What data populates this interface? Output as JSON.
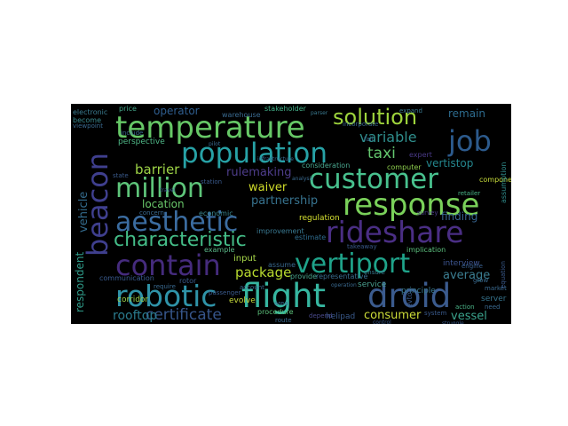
{
  "word_cloud": {
    "background": "#000000",
    "words": [
      {
        "text": "robotic",
        "color": "#2f93a8"
      },
      {
        "text": "flight",
        "color": "#36b6a0"
      },
      {
        "text": "droid",
        "color": "#3b5b8e"
      },
      {
        "text": "temperature",
        "color": "#66c866"
      },
      {
        "text": "population",
        "color": "#27a2a6"
      },
      {
        "text": "customer",
        "color": "#48c18e"
      },
      {
        "text": "response",
        "color": "#7ad15a"
      },
      {
        "text": "million",
        "color": "#5ec57a"
      },
      {
        "text": "aesthetic",
        "color": "#3b6ca0"
      },
      {
        "text": "beacon",
        "color": "#3f3f8e"
      },
      {
        "text": "rideshare",
        "color": "#4a2e84"
      },
      {
        "text": "contain",
        "color": "#452b7d"
      },
      {
        "text": "vertiport",
        "color": "#1fa38a"
      },
      {
        "text": "characteristic",
        "color": "#44bd88"
      },
      {
        "text": "solution",
        "color": "#9ed43c"
      },
      {
        "text": "job",
        "color": "#2c5a8c"
      },
      {
        "text": "certificate",
        "color": "#36558a"
      },
      {
        "text": "variable",
        "color": "#2f8e8c"
      },
      {
        "text": "taxi",
        "color": "#63c66e"
      },
      {
        "text": "barrier",
        "color": "#9dd346"
      },
      {
        "text": "package",
        "color": "#b7d92f"
      },
      {
        "text": "location",
        "color": "#69c86a"
      },
      {
        "text": "partnership",
        "color": "#37738f"
      },
      {
        "text": "rulemaking",
        "color": "#4e3d8b"
      },
      {
        "text": "waiver",
        "color": "#d0dc2a"
      },
      {
        "text": "rooftop",
        "color": "#2a7b8e"
      },
      {
        "text": "vessel",
        "color": "#3aa38c"
      },
      {
        "text": "consumer",
        "color": "#cddc38"
      },
      {
        "text": "average",
        "color": "#3b7e92"
      },
      {
        "text": "finding",
        "color": "#37638f"
      },
      {
        "text": "vertistop",
        "color": "#24878e"
      },
      {
        "text": "remain",
        "color": "#2d6b8e"
      },
      {
        "text": "operator",
        "color": "#2f5e8f"
      },
      {
        "text": "vehicle",
        "color": "#336b8d"
      },
      {
        "text": "respondent",
        "color": "#2f9c8a"
      },
      {
        "text": "input",
        "color": "#a8d84a"
      },
      {
        "text": "perspective",
        "color": "#4fb887"
      },
      {
        "text": "electronic",
        "color": "#3a7c90"
      },
      {
        "text": "regulation",
        "color": "#d4e030"
      },
      {
        "text": "interview",
        "color": "#3d5590"
      },
      {
        "text": "evolve",
        "color": "#c8dc3c"
      },
      {
        "text": "corridor",
        "color": "#9cd44c"
      },
      {
        "text": "server",
        "color": "#36738c"
      },
      {
        "text": "helipad",
        "color": "#3a5a8c"
      },
      {
        "text": "service",
        "color": "#4aa090"
      },
      {
        "text": "principle",
        "color": "#3a7a90"
      },
      {
        "text": "stakeholder",
        "color": "#44b28a"
      },
      {
        "text": "warehouse",
        "color": "#3a6a90"
      },
      {
        "text": "component",
        "color": "#c8dc3a"
      },
      {
        "text": "assumption",
        "color": "#2f8c8c"
      },
      {
        "text": "computer",
        "color": "#8ed04e"
      },
      {
        "text": "expert",
        "color": "#4a3a88"
      },
      {
        "text": "consideration",
        "color": "#4aa890"
      },
      {
        "text": "improvement",
        "color": "#3a7a92"
      },
      {
        "text": "estimate",
        "color": "#2f6c8e"
      },
      {
        "text": "economic",
        "color": "#3b8890"
      },
      {
        "text": "example",
        "color": "#5ab888"
      },
      {
        "text": "communication",
        "color": "#3a5c90"
      },
      {
        "text": "representative",
        "color": "#3a6e90"
      },
      {
        "text": "implication",
        "color": "#5cc07e"
      },
      {
        "text": "price",
        "color": "#44a88a"
      },
      {
        "text": "become",
        "color": "#3a8a90"
      },
      {
        "text": "incorporate",
        "color": "#3a6a90"
      },
      {
        "text": "retailer",
        "color": "#4ab488"
      },
      {
        "text": "procedure",
        "color": "#5cc07a"
      },
      {
        "text": "assume",
        "color": "#3a6a90"
      },
      {
        "text": "rotor",
        "color": "#3a5a8c"
      },
      {
        "text": "provide",
        "color": "#4aa890"
      },
      {
        "text": "engine",
        "color": "#3a6090"
      },
      {
        "text": "system",
        "color": "#3a5a8c"
      },
      {
        "text": "depend",
        "color": "#4a4a8c"
      },
      {
        "text": "route",
        "color": "#3a6a90"
      },
      {
        "text": "expand",
        "color": "#3a7a90"
      },
      {
        "text": "action",
        "color": "#4ab488"
      },
      {
        "text": "need",
        "color": "#3a6a90"
      },
      {
        "text": "ensure",
        "color": "#3a7a90"
      },
      {
        "text": "survey",
        "color": "#4a3a88"
      },
      {
        "text": "fail",
        "color": "#3a6a90"
      },
      {
        "text": "state",
        "color": "#3a5a8c"
      },
      {
        "text": "concern",
        "color": "#3a6a90"
      },
      {
        "text": "passenger",
        "color": "#3a5a8c"
      },
      {
        "text": "require",
        "color": "#3a6a90"
      },
      {
        "text": "takeaway",
        "color": "#3a5a8c"
      },
      {
        "text": "account",
        "color": "#3a6a90"
      },
      {
        "text": "station",
        "color": "#3a5a8c"
      },
      {
        "text": "market",
        "color": "#3a6a90"
      },
      {
        "text": "equation",
        "color": "#3a5a8c"
      },
      {
        "text": "include",
        "color": "#3a6a90"
      },
      {
        "text": "parser",
        "color": "#3a7a90"
      },
      {
        "text": "viewpoint",
        "color": "#3a6a90"
      },
      {
        "text": "evtol",
        "color": "#3a5a8c"
      },
      {
        "text": "grow",
        "color": "#3a6a90"
      },
      {
        "text": "area",
        "color": "#3a6a90"
      },
      {
        "text": "operation",
        "color": "#3a6a90"
      },
      {
        "text": "pilot",
        "color": "#3a6a90"
      },
      {
        "text": "struggle",
        "color": "#3a5a8c"
      },
      {
        "text": "analysis",
        "color": "#3a6a90"
      },
      {
        "text": "control",
        "color": "#3a5a8c"
      },
      {
        "text": "infrastructure",
        "color": "#3a6a90"
      },
      {
        "text": "travel",
        "color": "#3a5a8c"
      }
    ]
  }
}
